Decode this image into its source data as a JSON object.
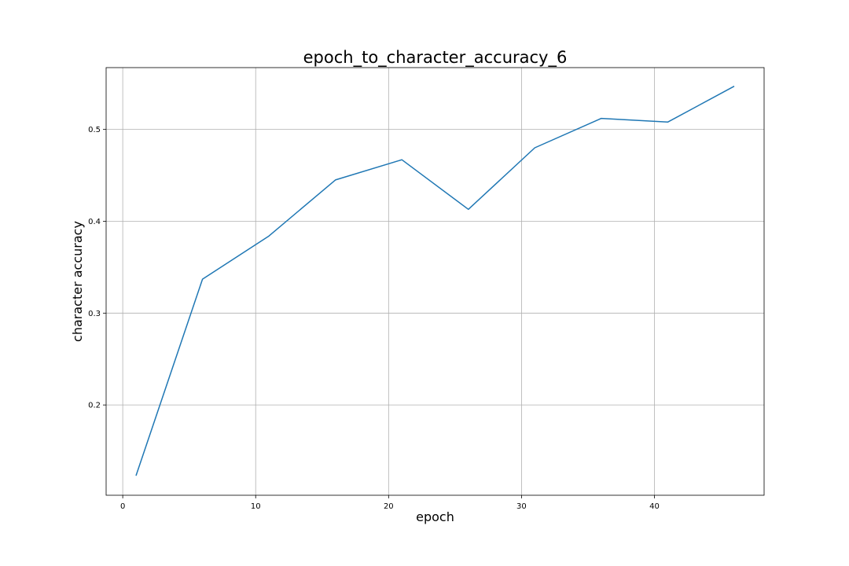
{
  "chart_data": {
    "type": "line",
    "title": "epoch_to_character_accuracy_6",
    "xlabel": "epoch",
    "ylabel": "character accuracy",
    "xlim": [
      -1.25,
      48.25
    ],
    "ylim": [
      0.1017,
      0.5673
    ],
    "xticks": [
      0,
      10,
      20,
      30,
      40
    ],
    "xtick_labels": [
      "0",
      "10",
      "20",
      "30",
      "40"
    ],
    "yticks": [
      0.2,
      0.3,
      0.4,
      0.5
    ],
    "ytick_labels": [
      "0.2",
      "0.3",
      "0.4",
      "0.5"
    ],
    "grid": true,
    "series": [
      {
        "color": "#1f77b4",
        "x": [
          1,
          6,
          11,
          16,
          21,
          26,
          31,
          36,
          41,
          46
        ],
        "y": [
          0.123,
          0.337,
          0.384,
          0.445,
          0.467,
          0.413,
          0.48,
          0.512,
          0.508,
          0.547
        ]
      }
    ]
  }
}
